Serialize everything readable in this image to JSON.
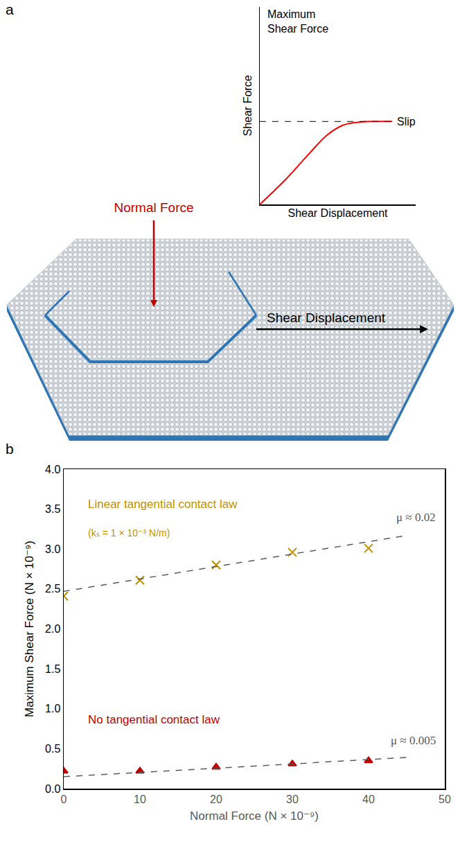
{
  "panel_labels": [
    "a",
    "b"
  ],
  "diagram": {
    "normal_force": "Normal Force",
    "shear_displacement": "Shear Displacement"
  },
  "chart_data": [
    {
      "type": "line",
      "x_label": "Shear Displacement",
      "y_label": "Shear Force",
      "tick_labels": false,
      "xlim": [
        0,
        1
      ],
      "ylim": [
        0,
        1
      ],
      "x": [
        0,
        0.17,
        0.32,
        0.43,
        0.53,
        0.62,
        0.72,
        0.85
      ],
      "values": [
        0,
        0.13,
        0.26,
        0.35,
        0.4,
        0.415,
        0.42,
        0.42
      ],
      "color": "#ff0000",
      "reference_line": {
        "value": 0.42,
        "label": "Maximum Shear Force",
        "line_style": "dashed"
      },
      "end_label": "Slip"
    },
    {
      "type": "scatter",
      "x_label": "Normal Force (N × 10⁻⁹)",
      "y_label": "Maximum Shear Force (N × 10⁻⁹)",
      "xlim": [
        0,
        50
      ],
      "ylim": [
        0,
        4
      ],
      "xticks": [
        0,
        10,
        20,
        30,
        40,
        50
      ],
      "yticks": [
        {
          "value": 0,
          "label": "0.0"
        },
        {
          "value": 0.5,
          "label": "0.5"
        },
        {
          "value": 1,
          "label": "1.0"
        },
        {
          "value": 1.5,
          "label": "1.5"
        },
        {
          "value": 2,
          "label": "2.0"
        },
        {
          "value": 2.5,
          "label": "2.5"
        },
        {
          "value": 3,
          "label": "3.0"
        },
        {
          "value": 3.5,
          "label": "3.5"
        },
        {
          "value": 4,
          "label": "4.0"
        }
      ],
      "grid": false,
      "series": [
        {
          "name": "Linear tangential contact law",
          "annotation": "(kₛ = 1 × 10⁻³ N/m)",
          "type": "scatter",
          "marker": "x",
          "color": "#BF9000",
          "x": [
            0,
            10,
            20,
            30,
            40
          ],
          "values": [
            2.41,
            2.61,
            2.8,
            2.96,
            3.01
          ]
        },
        {
          "name": "No tangential contact law",
          "type": "scatter",
          "marker": "triangle",
          "color": "#C00000",
          "x": [
            0,
            10,
            20,
            30,
            40
          ],
          "values": [
            0.22,
            0.22,
            0.27,
            0.31,
            0.35
          ]
        },
        {
          "name": "μ ≈ 0.02",
          "type": "line",
          "line_style": "dashed",
          "color": "#595959",
          "x": [
            0,
            45
          ],
          "values": [
            2.47,
            3.17
          ]
        },
        {
          "name": "μ ≈ 0.005",
          "type": "line",
          "line_style": "dashed",
          "color": "#595959",
          "x": [
            0,
            45
          ],
          "values": [
            0.15,
            0.39
          ]
        }
      ]
    }
  ]
}
